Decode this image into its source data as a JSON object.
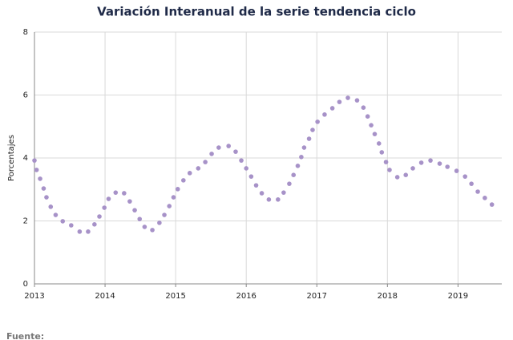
{
  "chart_data": {
    "type": "scatter",
    "title": "Variación Interanual de la serie tendencia ciclo",
    "y_label": "Porcentajes",
    "source": "Fuente:",
    "series": [
      {
        "name": "Variación interanual",
        "color": "#a792c8",
        "x": [
          2013.0,
          2013.03,
          2013.08,
          2013.13,
          2013.17,
          2013.23,
          2013.3,
          2013.4,
          2013.52,
          2013.64,
          2013.76,
          2013.85,
          2013.92,
          2013.99,
          2014.05,
          2014.15,
          2014.27,
          2014.35,
          2014.42,
          2014.49,
          2014.56,
          2014.67,
          2014.77,
          2014.84,
          2014.91,
          2014.97,
          2015.03,
          2015.11,
          2015.2,
          2015.32,
          2015.42,
          2015.51,
          2015.61,
          2015.75,
          2015.85,
          2015.93,
          2016.0,
          2016.07,
          2016.14,
          2016.22,
          2016.32,
          2016.45,
          2016.53,
          2016.61,
          2016.67,
          2016.73,
          2016.78,
          2016.82,
          2016.89,
          2016.94,
          2017.01,
          2017.11,
          2017.22,
          2017.32,
          2017.44,
          2017.57,
          2017.66,
          2017.72,
          2017.77,
          2017.82,
          2017.88,
          2017.92,
          2017.98,
          2018.03,
          2018.14,
          2018.26,
          2018.36,
          2018.48,
          2018.61,
          2018.74,
          2018.85,
          2018.98,
          2019.1,
          2019.19,
          2019.28,
          2019.38,
          2019.48
        ],
        "values": [
          3.92,
          3.62,
          3.34,
          3.03,
          2.75,
          2.45,
          2.19,
          1.99,
          1.86,
          1.66,
          1.66,
          1.89,
          2.14,
          2.42,
          2.7,
          2.9,
          2.88,
          2.62,
          2.34,
          2.06,
          1.81,
          1.71,
          1.94,
          2.19,
          2.47,
          2.75,
          3.01,
          3.29,
          3.52,
          3.67,
          3.87,
          4.13,
          4.33,
          4.38,
          4.2,
          3.92,
          3.67,
          3.41,
          3.13,
          2.88,
          2.68,
          2.68,
          2.9,
          3.18,
          3.46,
          3.75,
          4.03,
          4.33,
          4.61,
          4.89,
          5.15,
          5.38,
          5.58,
          5.78,
          5.91,
          5.83,
          5.6,
          5.32,
          5.04,
          4.76,
          4.46,
          4.18,
          3.87,
          3.62,
          3.39,
          3.46,
          3.67,
          3.85,
          3.92,
          3.82,
          3.72,
          3.59,
          3.41,
          3.18,
          2.93,
          2.73,
          2.52
        ]
      }
    ],
    "xlim": [
      2013,
      2019.62
    ],
    "xticks": [
      2013,
      2014,
      2015,
      2016,
      2017,
      2018,
      2019
    ],
    "ylim": [
      0,
      8
    ],
    "yticks": [
      0,
      2,
      4,
      6,
      8
    ],
    "grid": true
  }
}
